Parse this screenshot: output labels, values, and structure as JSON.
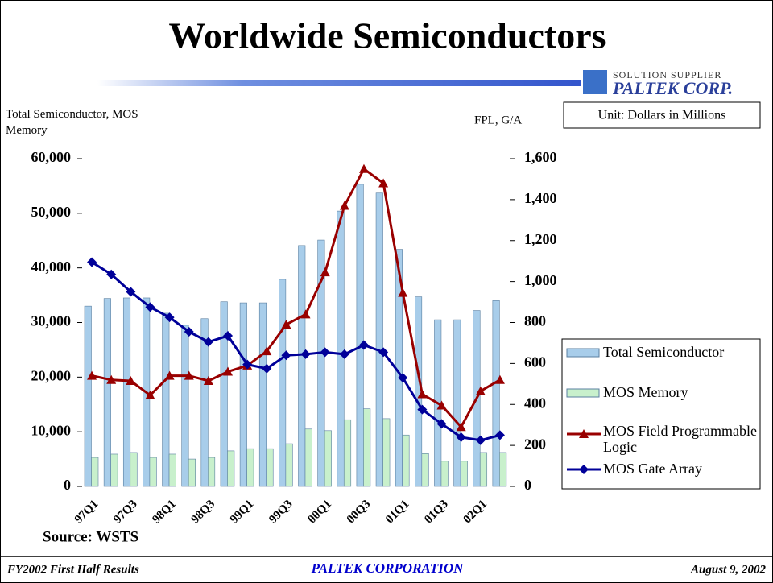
{
  "chart_data": {
    "type": "combo",
    "title": "Worldwide Semiconductors",
    "ylabel": "Total Semiconductor, MOS Memory",
    "y2label": "FPL, G/A",
    "unit_note": "Unit: Dollars in Millions",
    "source": "Source: WSTS",
    "categories": [
      "97Q1",
      null,
      "97Q3",
      null,
      "98Q1",
      null,
      "98Q3",
      null,
      "99Q1",
      null,
      "99Q3",
      null,
      "00Q1",
      null,
      "00Q3",
      null,
      "01Q1",
      null,
      "01Q3",
      null,
      "02Q1",
      null
    ],
    "ylim": [
      0,
      60000
    ],
    "yticks": [
      0,
      {
        "value": 10000,
        "label": "10,000"
      },
      {
        "value": 20000,
        "label": "20,000"
      },
      {
        "value": 30000,
        "label": "30,000"
      },
      {
        "value": 40000,
        "label": "40,000"
      },
      {
        "value": 50000,
        "label": "50,000"
      },
      {
        "value": 60000,
        "label": "60,000"
      }
    ],
    "y2lim": [
      0,
      1600
    ],
    "y2ticks": [
      0,
      200,
      400,
      600,
      800,
      {
        "value": 1000,
        "label": "1,000"
      },
      {
        "value": 1200,
        "label": "1,200"
      },
      {
        "value": 1400,
        "label": "1,400"
      },
      {
        "value": 1600,
        "label": "1,600"
      }
    ],
    "series": [
      {
        "name": "Total Semiconductor",
        "type": "bar",
        "color": "#a8cdea",
        "values": [
          33000,
          34400,
          34500,
          34500,
          31700,
          29500,
          30700,
          33800,
          33600,
          33600,
          37900,
          44100,
          45100,
          50400,
          55300,
          53700,
          43400,
          34700,
          30500,
          30500,
          32200,
          34000
        ]
      },
      {
        "name": "MOS Memory",
        "type": "bar",
        "color": "#c8f0cc",
        "values": [
          5300,
          5900,
          6200,
          5300,
          5900,
          5000,
          5300,
          6500,
          6900,
          6900,
          7800,
          10500,
          10200,
          12200,
          14200,
          12400,
          9400,
          6000,
          4600,
          4600,
          6200,
          6200
        ]
      },
      {
        "name": "MOS Field Programmable Logic",
        "type": "line",
        "marker": "triangle",
        "axis": "y2",
        "color": "#990000",
        "values": [
          540,
          520,
          515,
          445,
          540,
          540,
          515,
          560,
          590,
          660,
          790,
          840,
          1045,
          1370,
          1550,
          1480,
          945,
          450,
          395,
          290,
          465,
          520
        ]
      },
      {
        "name": "MOS Gate Array",
        "type": "line",
        "marker": "diamond",
        "axis": "y2",
        "color": "#000099",
        "values": [
          1095,
          1035,
          950,
          875,
          825,
          755,
          705,
          735,
          595,
          575,
          640,
          645,
          655,
          645,
          690,
          655,
          530,
          375,
          305,
          240,
          225,
          250
        ]
      }
    ]
  },
  "logo": {
    "tagline": "SOLUTION SUPPLIER",
    "name": "PALTEK CORP."
  },
  "footer": {
    "left": "FY2002 First Half Results",
    "center": "PALTEK CORPORATION",
    "right": "August 9, 2002"
  }
}
